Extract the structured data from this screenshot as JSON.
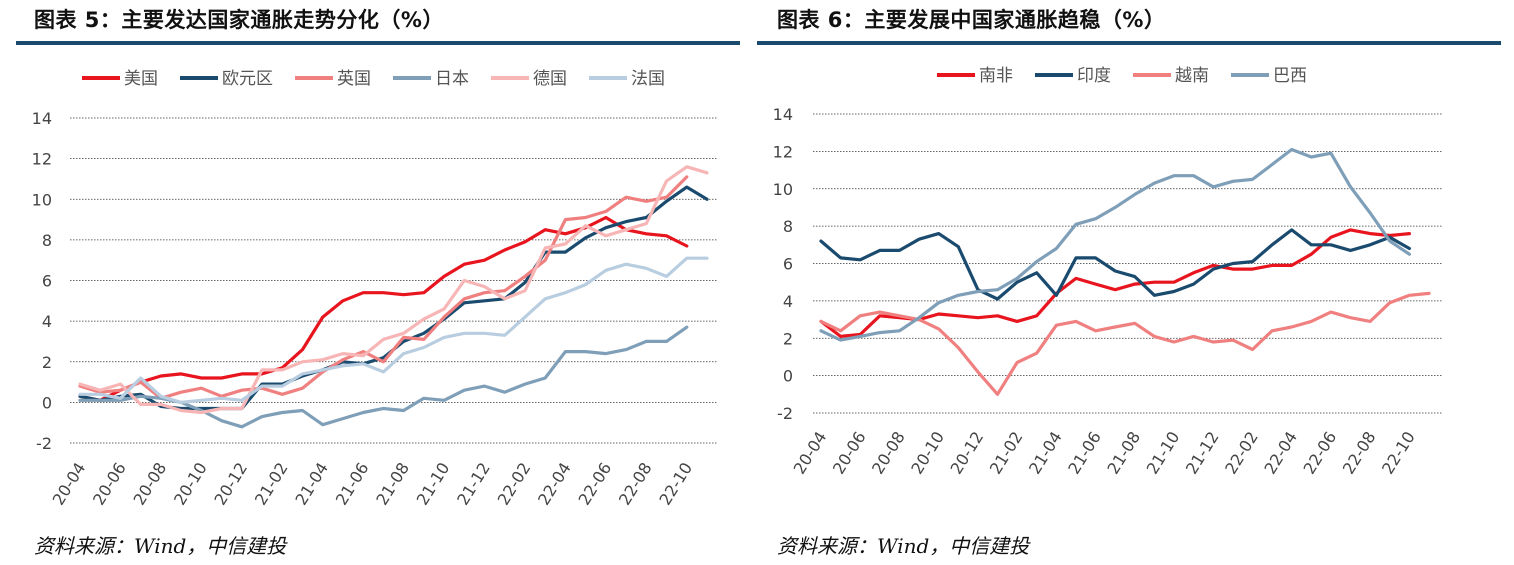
{
  "left": {
    "title": "图表  5：主要发达国家通胀走势分化（%）",
    "source": "资料来源：Wind，中信建投",
    "chart_data": {
      "type": "line",
      "title": "图表  5：主要发达国家通胀走势分化（%）",
      "x": [
        "20-04",
        "20-05",
        "20-06",
        "20-07",
        "20-08",
        "20-09",
        "20-10",
        "20-11",
        "20-12",
        "21-01",
        "21-02",
        "21-03",
        "21-04",
        "21-05",
        "21-06",
        "21-07",
        "21-08",
        "21-09",
        "21-10",
        "21-11",
        "21-12",
        "22-01",
        "22-02",
        "22-03",
        "22-04",
        "22-05",
        "22-06",
        "22-07",
        "22-08",
        "22-09",
        "22-10",
        "22-11"
      ],
      "x_tick_labels": [
        "20-04",
        "20-06",
        "20-08",
        "20-10",
        "20-12",
        "21-02",
        "21-04",
        "21-06",
        "21-08",
        "21-10",
        "21-12",
        "22-02",
        "22-04",
        "22-06",
        "22-08",
        "22-10"
      ],
      "ylim": [
        -2,
        14
      ],
      "y_ticks": [
        -2,
        0,
        2,
        4,
        6,
        8,
        10,
        12,
        14
      ],
      "grid": "horizontal-dashed",
      "legend_position": "top",
      "series": [
        {
          "name": "美国",
          "color": "#e8141e",
          "values": [
            0.3,
            0.1,
            0.6,
            1.0,
            1.3,
            1.4,
            1.2,
            1.2,
            1.4,
            1.4,
            1.7,
            2.6,
            4.2,
            5.0,
            5.4,
            5.4,
            5.3,
            5.4,
            6.2,
            6.8,
            7.0,
            7.5,
            7.9,
            8.5,
            8.3,
            8.6,
            9.1,
            8.5,
            8.3,
            8.2,
            7.7,
            null
          ]
        },
        {
          "name": "欧元区",
          "color": "#1a4b6e",
          "values": [
            0.3,
            0.1,
            0.3,
            0.4,
            -0.2,
            -0.3,
            -0.3,
            -0.3,
            -0.3,
            0.9,
            0.9,
            1.3,
            1.6,
            2.0,
            1.9,
            2.2,
            3.0,
            3.4,
            4.1,
            4.9,
            5.0,
            5.1,
            5.9,
            7.4,
            7.4,
            8.1,
            8.6,
            8.9,
            9.1,
            9.9,
            10.6,
            10.0
          ]
        },
        {
          "name": "英国",
          "color": "#f08080",
          "values": [
            0.8,
            0.5,
            0.6,
            1.0,
            0.2,
            0.5,
            0.7,
            0.3,
            0.6,
            0.7,
            0.4,
            0.7,
            1.5,
            2.1,
            2.5,
            2.0,
            3.2,
            3.1,
            4.2,
            5.1,
            5.4,
            5.5,
            6.2,
            7.0,
            9.0,
            9.1,
            9.4,
            10.1,
            9.9,
            10.1,
            11.1,
            null
          ]
        },
        {
          "name": "日本",
          "color": "#7f9fb8",
          "values": [
            0.1,
            0.1,
            0.1,
            0.3,
            0.2,
            0.0,
            -0.4,
            -0.9,
            -1.2,
            -0.7,
            -0.5,
            -0.4,
            -1.1,
            -0.8,
            -0.5,
            -0.3,
            -0.4,
            0.2,
            0.1,
            0.6,
            0.8,
            0.5,
            0.9,
            1.2,
            2.5,
            2.5,
            2.4,
            2.6,
            3.0,
            3.0,
            3.7,
            null
          ]
        },
        {
          "name": "德国",
          "color": "#f7b5b5",
          "values": [
            0.9,
            0.6,
            0.9,
            -0.1,
            -0.1,
            -0.4,
            -0.5,
            -0.3,
            -0.3,
            1.6,
            1.6,
            2.0,
            2.1,
            2.4,
            2.3,
            3.1,
            3.4,
            4.1,
            4.6,
            6.0,
            5.7,
            5.1,
            5.5,
            7.6,
            7.8,
            8.7,
            8.2,
            8.5,
            8.8,
            10.9,
            11.6,
            11.3
          ]
        },
        {
          "name": "法国",
          "color": "#b8cde0",
          "values": [
            0.4,
            0.4,
            0.2,
            1.2,
            0.3,
            0.0,
            0.1,
            0.2,
            0.1,
            0.8,
            0.8,
            1.4,
            1.6,
            1.8,
            1.9,
            1.5,
            2.4,
            2.7,
            3.2,
            3.4,
            3.4,
            3.3,
            4.2,
            5.1,
            5.4,
            5.8,
            6.5,
            6.8,
            6.6,
            6.2,
            7.1,
            7.1
          ]
        }
      ]
    }
  },
  "right": {
    "title": "图表  6：主要发展中国家通胀趋稳（%）",
    "source": "资料来源：Wind，中信建投",
    "chart_data": {
      "type": "line",
      "title": "图表  6：主要发展中国家通胀趋稳（%）",
      "x": [
        "20-04",
        "20-05",
        "20-06",
        "20-07",
        "20-08",
        "20-09",
        "20-10",
        "20-11",
        "20-12",
        "21-01",
        "21-02",
        "21-03",
        "21-04",
        "21-05",
        "21-06",
        "21-07",
        "21-08",
        "21-09",
        "21-10",
        "21-11",
        "21-12",
        "22-01",
        "22-02",
        "22-03",
        "22-04",
        "22-05",
        "22-06",
        "22-07",
        "22-08",
        "22-09",
        "22-10",
        "22-11"
      ],
      "x_tick_labels": [
        "20-04",
        "20-06",
        "20-08",
        "20-10",
        "20-12",
        "21-02",
        "21-04",
        "21-06",
        "21-08",
        "21-10",
        "21-12",
        "22-02",
        "22-04",
        "22-06",
        "22-08",
        "22-10"
      ],
      "ylim": [
        -2,
        14
      ],
      "y_ticks": [
        -2,
        0,
        2,
        4,
        6,
        8,
        10,
        12,
        14
      ],
      "grid": "horizontal-dashed",
      "legend_position": "top",
      "series": [
        {
          "name": "南非",
          "color": "#e8141e",
          "values": [
            2.9,
            2.1,
            2.2,
            3.2,
            3.1,
            3.0,
            3.3,
            3.2,
            3.1,
            3.2,
            2.9,
            3.2,
            4.4,
            5.2,
            4.9,
            4.6,
            4.9,
            5.0,
            5.0,
            5.5,
            5.9,
            5.7,
            5.7,
            5.9,
            5.9,
            6.5,
            7.4,
            7.8,
            7.6,
            7.5,
            7.6,
            null
          ]
        },
        {
          "name": "印度",
          "color": "#1a4b6e",
          "values": [
            7.2,
            6.3,
            6.2,
            6.7,
            6.7,
            7.3,
            7.6,
            6.9,
            4.6,
            4.1,
            5.0,
            5.5,
            4.3,
            6.3,
            6.3,
            5.6,
            5.3,
            4.3,
            4.5,
            4.9,
            5.7,
            6.0,
            6.1,
            7.0,
            7.8,
            7.0,
            7.0,
            6.7,
            7.0,
            7.4,
            6.8,
            null
          ]
        },
        {
          "name": "越南",
          "color": "#f08080",
          "values": [
            2.9,
            2.4,
            3.2,
            3.4,
            3.2,
            3.0,
            2.5,
            1.5,
            0.2,
            -1.0,
            0.7,
            1.2,
            2.7,
            2.9,
            2.4,
            2.6,
            2.8,
            2.1,
            1.8,
            2.1,
            1.8,
            1.9,
            1.4,
            2.4,
            2.6,
            2.9,
            3.4,
            3.1,
            2.9,
            3.9,
            4.3,
            4.4
          ]
        },
        {
          "name": "巴西",
          "color": "#7f9fb8",
          "values": [
            2.4,
            1.9,
            2.1,
            2.3,
            2.4,
            3.1,
            3.9,
            4.3,
            4.5,
            4.6,
            5.2,
            6.1,
            6.8,
            8.1,
            8.4,
            9.0,
            9.7,
            10.3,
            10.7,
            10.7,
            10.1,
            10.4,
            10.5,
            11.3,
            12.1,
            11.7,
            11.9,
            10.1,
            8.7,
            7.2,
            6.5,
            null
          ]
        }
      ]
    }
  }
}
